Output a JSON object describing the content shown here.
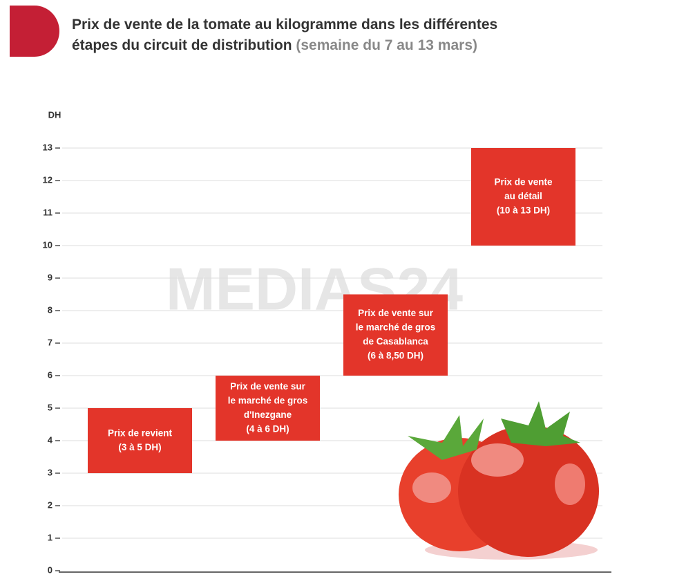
{
  "chart_data": {
    "type": "range_bar",
    "title": "Prix de vente de la tomate au kilogramme dans les différentes étapes du circuit de distribution",
    "subtitle": "(semaine du 7 au 13 mars)",
    "y_label": "DH",
    "watermark": "MEDIAS24",
    "categories": [
      [
        "Prix de revient"
      ],
      [
        "Prix de vente sur",
        "le marché de gros",
        "d'Inezgane"
      ],
      [
        "Prix de vente sur",
        "le marché de gros",
        "de Casablanca"
      ],
      [
        "Prix de vente",
        "au détail"
      ]
    ],
    "low": [
      3,
      4,
      6,
      10
    ],
    "high": [
      5,
      6,
      8.5,
      13
    ],
    "value_labels": [
      "(3 à 5 DH)",
      "(4 à 6 DH)",
      "(6 à 8,50 DH)",
      "(10 à 13 DH)"
    ],
    "color": "#e3352a",
    "ylim": [
      0,
      14
    ],
    "yticks": [
      0,
      1,
      2,
      3,
      4,
      5,
      6,
      7,
      8,
      9,
      10,
      11,
      12,
      13
    ],
    "grid": true
  }
}
